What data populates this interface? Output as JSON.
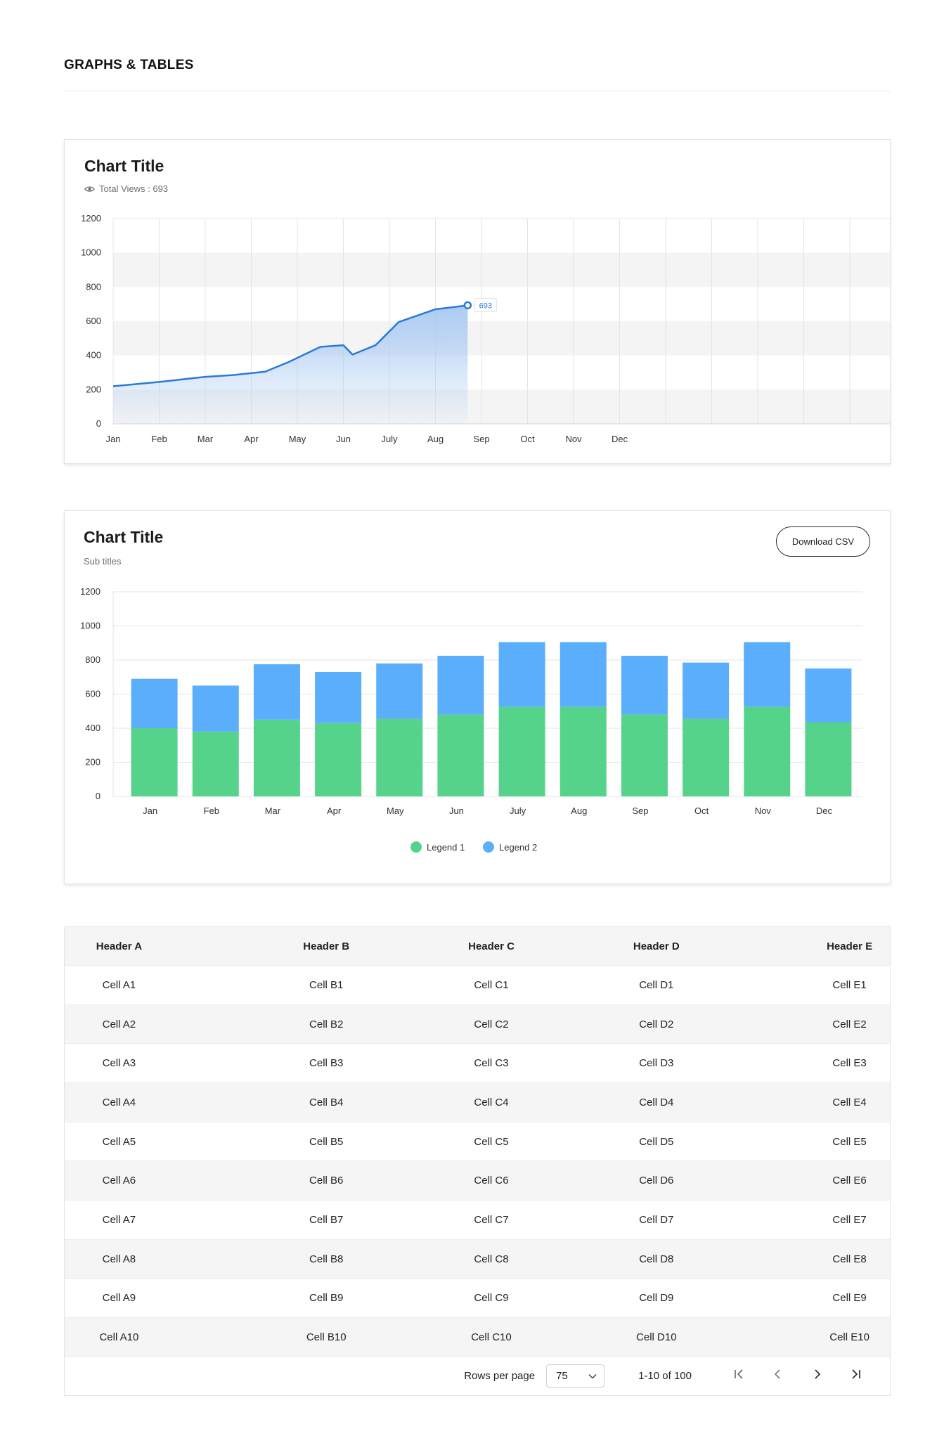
{
  "page": {
    "title": "GRAPHS & TABLES"
  },
  "chart1": {
    "title": "Chart Title",
    "subtitle": "Total Views : 693",
    "eye_icon": "eye-icon",
    "tooltip": "693",
    "colors": {
      "line": "#2a7ad8",
      "fill": "#a6c8f2",
      "band": "#f4f4f4",
      "grid": "#e4e4e4"
    }
  },
  "chart2": {
    "title": "Chart Title",
    "subtitle": "Sub titles",
    "download_label": "Download CSV",
    "colors": {
      "legend1": "#56d38b",
      "legend2": "#5aaefb"
    }
  },
  "chart_data": [
    {
      "type": "area",
      "title": "Chart Title",
      "x_ticks": [
        "Jan",
        "Feb",
        "Mar",
        "Apr",
        "May",
        "Jun",
        "July",
        "Aug",
        "Sep",
        "Oct",
        "Nov",
        "Dec"
      ],
      "y_ticks": [
        0,
        200,
        400,
        600,
        800,
        1000,
        1200
      ],
      "ylim": [
        0,
        1200
      ],
      "series": [
        {
          "points": [
            [
              0,
              220
            ],
            [
              1,
              245
            ],
            [
              2,
              275
            ],
            [
              2.6,
              285
            ],
            [
              3.3,
              305
            ],
            [
              3.8,
              360
            ],
            [
              4.5,
              450
            ],
            [
              5,
              460
            ],
            [
              5.2,
              405
            ],
            [
              5.7,
              460
            ],
            [
              6.2,
              595
            ],
            [
              7,
              670
            ],
            [
              7.7,
              693
            ]
          ]
        }
      ],
      "highlight": {
        "x": 7.7,
        "y": 693,
        "label": "693"
      },
      "grid": true
    },
    {
      "type": "bar",
      "stacked": true,
      "title": "Chart Title",
      "categories": [
        "Jan",
        "Feb",
        "Mar",
        "Apr",
        "May",
        "Jun",
        "July",
        "Aug",
        "Sep",
        "Oct",
        "Nov",
        "Dec"
      ],
      "y_ticks": [
        0,
        200,
        400,
        600,
        800,
        1000,
        1200
      ],
      "ylim": [
        0,
        1200
      ],
      "series": [
        {
          "name": "Legend 1",
          "values": [
            400,
            380,
            450,
            430,
            455,
            480,
            525,
            525,
            480,
            455,
            525,
            435
          ]
        },
        {
          "name": "Legend 2",
          "values": [
            290,
            270,
            325,
            300,
            325,
            345,
            380,
            380,
            345,
            330,
            380,
            315
          ]
        }
      ],
      "legend": "bottom-center",
      "grid": true
    }
  ],
  "table": {
    "headers": [
      "Header A",
      "Header B",
      "Header C",
      "Header D",
      "Header E"
    ],
    "rows": [
      [
        "Cell A1",
        "Cell B1",
        "Cell C1",
        "Cell D1",
        "Cell E1"
      ],
      [
        "Cell A2",
        "Cell B2",
        "Cell C2",
        "Cell D2",
        "Cell E2"
      ],
      [
        "Cell A3",
        "Cell B3",
        "Cell C3",
        "Cell D3",
        "Cell E3"
      ],
      [
        "Cell A4",
        "Cell B4",
        "Cell C4",
        "Cell D4",
        "Cell E4"
      ],
      [
        "Cell A5",
        "Cell B5",
        "Cell C5",
        "Cell D5",
        "Cell E5"
      ],
      [
        "Cell A6",
        "Cell B6",
        "Cell C6",
        "Cell D6",
        "Cell E6"
      ],
      [
        "Cell A7",
        "Cell B7",
        "Cell C7",
        "Cell D7",
        "Cell E7"
      ],
      [
        "Cell A8",
        "Cell B8",
        "Cell C8",
        "Cell D8",
        "Cell E8"
      ],
      [
        "Cell A9",
        "Cell B9",
        "Cell C9",
        "Cell D9",
        "Cell E9"
      ],
      [
        "Cell A10",
        "Cell B10",
        "Cell C10",
        "Cell D10",
        "Cell E10"
      ]
    ]
  },
  "pagination": {
    "rows_per_page_label": "Rows per page",
    "rows_per_page_value": "75",
    "range_text": "1-10 of 100",
    "icons": [
      "first-page-icon",
      "prev-page-icon",
      "next-page-icon",
      "last-page-icon"
    ]
  }
}
